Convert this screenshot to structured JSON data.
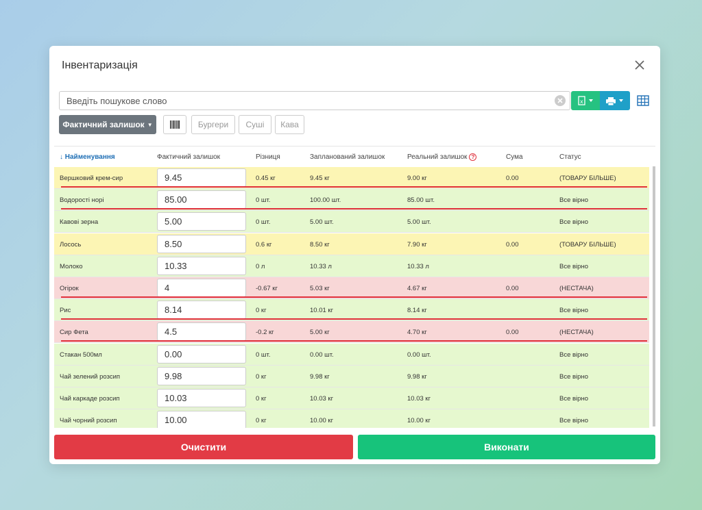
{
  "modal": {
    "title": "Інвентаризація",
    "search_placeholder": "Введіть пошукове слово"
  },
  "filters": {
    "dropdown_label": "Фактичний залишок",
    "categories": [
      "Бургери",
      "Суші",
      "Кава"
    ]
  },
  "table": {
    "headers": {
      "name": "↓ Найменування",
      "actual": "Фактичний залишок",
      "difference": "Різниця",
      "planned": "Запланований залишок",
      "real": "Реальний залишок",
      "sum": "Сума",
      "status": "Статус"
    },
    "rows": [
      {
        "name": "Вершковий крем-сир",
        "actual": "9.45",
        "difference": "0.45 кг",
        "planned": "9.45 кг",
        "real": "9.00 кг",
        "sum": "0.00",
        "status": "(ТОВАРУ БІЛЬШЕ)",
        "state": "more",
        "underline": true
      },
      {
        "name": "Водорості норі",
        "actual": "85.00",
        "difference": "0 шт.",
        "planned": "100.00 шт.",
        "real": "85.00 шт.",
        "sum": "",
        "status": "Все вірно",
        "state": "ok",
        "underline": true
      },
      {
        "name": "Кавові зерна",
        "actual": "5.00",
        "difference": "0 шт.",
        "planned": "5.00 шт.",
        "real": "5.00 шт.",
        "sum": "",
        "status": "Все вірно",
        "state": "ok",
        "underline": false
      },
      {
        "name": "Лосось",
        "actual": "8.50",
        "difference": "0.6 кг",
        "planned": "8.50 кг",
        "real": "7.90 кг",
        "sum": "0.00",
        "status": "(ТОВАРУ БІЛЬШЕ)",
        "state": "more",
        "underline": false
      },
      {
        "name": "Молоко",
        "actual": "10.33",
        "difference": "0 л",
        "planned": "10.33 л",
        "real": "10.33 л",
        "sum": "",
        "status": "Все вірно",
        "state": "ok",
        "underline": false
      },
      {
        "name": "Огірок",
        "actual": "4",
        "difference": "-0.67 кг",
        "planned": "5.03 кг",
        "real": "4.67 кг",
        "sum": "0.00",
        "status": "(НЕСТАЧА)",
        "state": "short",
        "underline": true
      },
      {
        "name": "Рис",
        "actual": "8.14",
        "difference": "0 кг",
        "planned": "10.01 кг",
        "real": "8.14 кг",
        "sum": "",
        "status": "Все вірно",
        "state": "ok",
        "underline": true
      },
      {
        "name": "Сир Фета",
        "actual": "4.5",
        "difference": "-0.2 кг",
        "planned": "5.00 кг",
        "real": "4.70 кг",
        "sum": "0.00",
        "status": "(НЕСТАЧА)",
        "state": "short",
        "underline": true
      },
      {
        "name": "Стакан 500мл",
        "actual": "0.00",
        "difference": "0 шт.",
        "planned": "0.00 шт.",
        "real": "0.00 шт.",
        "sum": "",
        "status": "Все вірно",
        "state": "ok",
        "underline": false
      },
      {
        "name": "Чай зелений розсип",
        "actual": "9.98",
        "difference": "0 кг",
        "planned": "9.98 кг",
        "real": "9.98 кг",
        "sum": "",
        "status": "Все вірно",
        "state": "ok",
        "underline": false
      },
      {
        "name": "Чай каркаде розсип",
        "actual": "10.03",
        "difference": "0 кг",
        "planned": "10.03 кг",
        "real": "10.03 кг",
        "sum": "",
        "status": "Все вірно",
        "state": "ok",
        "underline": false
      },
      {
        "name": "Чай чорний розсип",
        "actual": "10.00",
        "difference": "0 кг",
        "planned": "10.00 кг",
        "real": "10.00 кг",
        "sum": "",
        "status": "Все вірно",
        "state": "ok",
        "underline": false
      }
    ]
  },
  "actions": {
    "clear_label": "Очистити",
    "run_label": "Виконати"
  },
  "colors": {
    "ok": "#e6f8cf",
    "more": "#fcf5b4",
    "short": "#f8d7d7",
    "danger": "#e23b45",
    "success": "#17c37b"
  }
}
